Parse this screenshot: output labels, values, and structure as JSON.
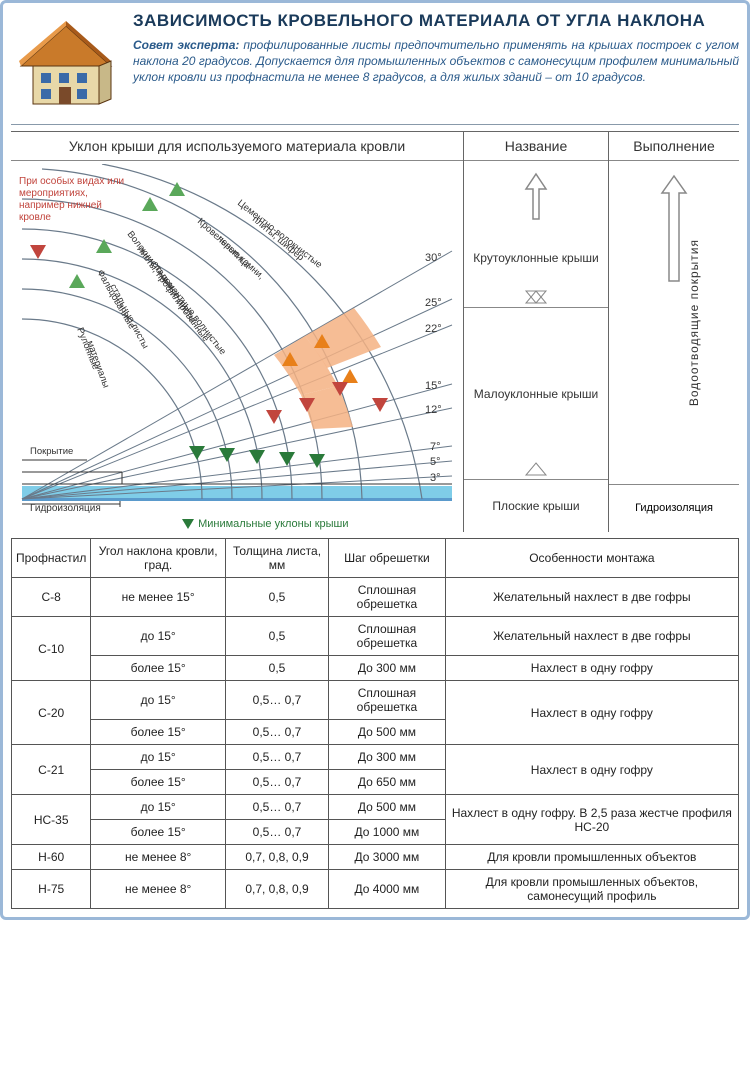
{
  "title": "ЗАВИСИМОСТЬ КРОВЕЛЬНОГО МАТЕРИАЛА ОТ УГЛА НАКЛОНА",
  "expert_label": "Совет эксперта:",
  "expert_text": "профилированные листы предпочтительно применять на крышах построек с углом наклона 20 градусов. Допускается для промышленных объектов с самонесущим профилем минимальный уклон кровли из профнастила не менее 8 градусов, а для жилых зданий – от 10 градусов.",
  "diagram": {
    "col_main_header": "Уклон крыши для используемого материала кровли",
    "col_name_header": "Название",
    "col_exec_header": "Выполнение",
    "note_text": "При особых видах или мероприятиях, например нижней кровле",
    "legend_text": "Минимальные уклоны крыши",
    "angles": [
      "30°",
      "25°",
      "22°",
      "15°",
      "12°",
      "7°",
      "5°",
      "3°"
    ],
    "arc_labels": [
      "Цементно-волокнистые плиты, шифер",
      "Кровельные камни, черепица",
      "Волокнисто-цементные волнистые листы, профилированные стальные листы",
      "Фальцованные стальные листы",
      "Рулонные материалы",
      "Покрытие",
      "Гидроизоляция"
    ],
    "name_rows": [
      "Крутоуклонные крыши",
      "Малоуклонные крыши",
      "Плоские крыши"
    ],
    "exec_rows": [
      "Водоотводящие покрытия",
      "Гидроизоляция"
    ],
    "colors": {
      "arc": "#6a7a8a",
      "fill1": "#f4b183",
      "water": "#7fcde8",
      "green_tri": "#5aa85a",
      "orange_tri": "#e8801a",
      "red_tri": "#c1453d"
    }
  },
  "table": {
    "headers": [
      "Профнастил",
      "Угол наклона кровли, град.",
      "Толщина листа, мм",
      "Шаг обрешетки",
      "Особенности монтажа"
    ],
    "rows": [
      {
        "p": "С-8",
        "cells": [
          [
            "не менее 15°",
            "0,5",
            "Сплошная обрешетка",
            "Желательный нахлест в две гофры"
          ]
        ]
      },
      {
        "p": "С-10",
        "cells": [
          [
            "до 15°",
            "0,5",
            "Сплошная обрешетка",
            "Желательный нахлест в две гофры"
          ],
          [
            "более 15°",
            "0,5",
            "До 300 мм",
            "Нахлест в одну гофру"
          ]
        ]
      },
      {
        "p": "С-20",
        "cells": [
          [
            "до 15°",
            "0,5… 0,7",
            "Сплошная обрешетка"
          ],
          [
            "более 15°",
            "0,5… 0,7",
            "До 500 мм"
          ]
        ],
        "feat": "Нахлест в одну гофру"
      },
      {
        "p": "С-21",
        "cells": [
          [
            "до 15°",
            "0,5… 0,7",
            "До 300 мм"
          ],
          [
            "более 15°",
            "0,5… 0,7",
            "До 650 мм"
          ]
        ],
        "feat": "Нахлест в одну гофру"
      },
      {
        "p": "НС-35",
        "cells": [
          [
            "до 15°",
            "0,5… 0,7",
            "До 500 мм"
          ],
          [
            "более 15°",
            "0,5… 0,7",
            "До 1000 мм"
          ]
        ],
        "feat": "Нахлест в одну гофру. В 2,5 раза жестче профиля НС-20"
      },
      {
        "p": "Н-60",
        "cells": [
          [
            "не менее 8°",
            "0,7, 0,8, 0,9",
            "До 3000 мм",
            "Для кровли промышленных объектов"
          ]
        ]
      },
      {
        "p": "Н-75",
        "cells": [
          [
            "не менее 8°",
            "0,7, 0,8, 0,9",
            "До 4000 мм",
            "Для кровли промышленных объектов, самонесущий профиль"
          ]
        ]
      }
    ]
  }
}
